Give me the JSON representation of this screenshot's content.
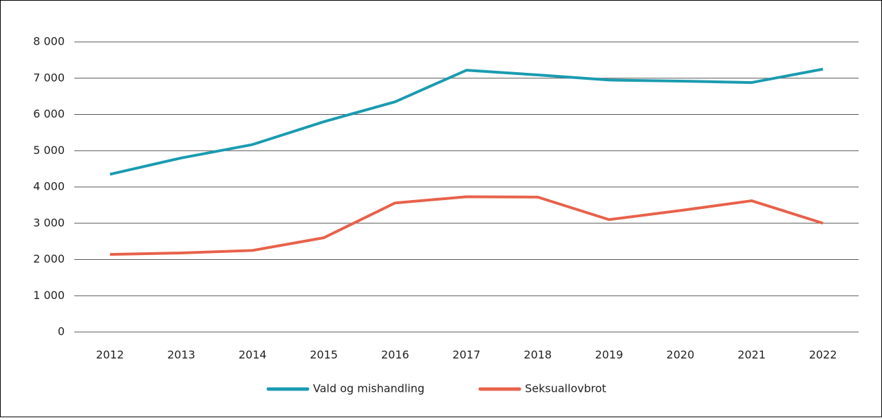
{
  "chart_data": {
    "type": "line",
    "categories": [
      "2012",
      "2013",
      "2014",
      "2015",
      "2016",
      "2017",
      "2018",
      "2019",
      "2020",
      "2021",
      "2022"
    ],
    "series": [
      {
        "name": "Vald og mishandling",
        "color": "#1a9bb0",
        "values": [
          4350,
          4800,
          5170,
          5800,
          6350,
          7220,
          7090,
          6950,
          6920,
          6880,
          7250
        ]
      },
      {
        "name": "Seksuallovbrot",
        "color": "#e8614a",
        "values": [
          2140,
          2180,
          2250,
          2600,
          3560,
          3730,
          3720,
          3100,
          3350,
          3620,
          3000
        ]
      }
    ],
    "ylim": [
      0,
      8000
    ],
    "yticks": [
      0,
      {
        "value": 1000,
        "label": "1 000"
      },
      {
        "value": 2000,
        "label": "2 000"
      },
      {
        "value": 3000,
        "label": "3 000"
      },
      {
        "value": 4000,
        "label": "4 000"
      },
      {
        "value": 5000,
        "label": "5 000"
      },
      {
        "value": 6000,
        "label": "6 000"
      },
      {
        "value": 7000,
        "label": "7 000"
      },
      {
        "value": 8000,
        "label": "8 000"
      }
    ],
    "grid": true,
    "legend": "bottom"
  }
}
